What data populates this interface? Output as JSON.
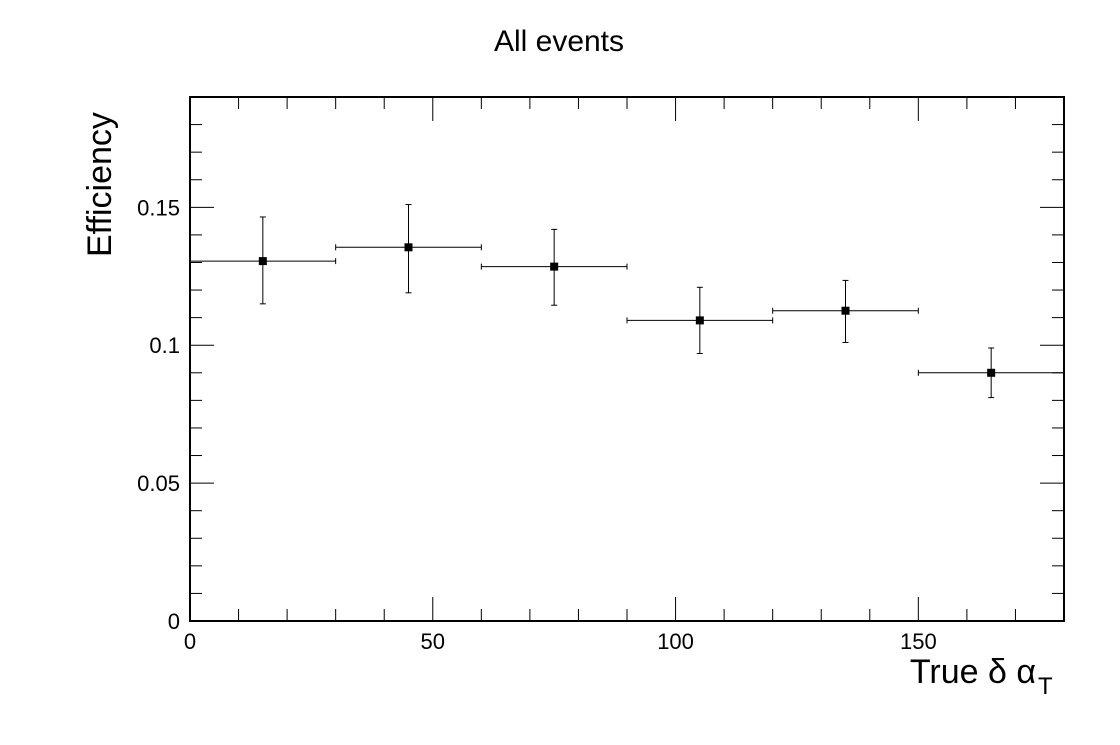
{
  "chart_data": {
    "type": "scatter",
    "title": "All events",
    "xlabel": "True δ α",
    "xlabel_subscript": "T",
    "ylabel": "Efficiency",
    "xlim": [
      0,
      180
    ],
    "ylim": [
      0,
      0.19
    ],
    "x_ticks": [
      0,
      50,
      100,
      150
    ],
    "x_tick_labels": [
      "0",
      "50",
      "100",
      "150"
    ],
    "y_ticks": [
      0,
      0.05,
      0.1,
      0.15
    ],
    "y_tick_labels": [
      "0",
      "0.05",
      "0.1",
      "0.15"
    ],
    "grid": false,
    "legend": "none",
    "series": [
      {
        "points": [
          {
            "x": 15,
            "xlow": 0,
            "xhigh": 30,
            "y": 0.1305,
            "ylow": 0.115,
            "yhigh": 0.1465
          },
          {
            "x": 45,
            "xlow": 30,
            "xhigh": 60,
            "y": 0.1355,
            "ylow": 0.119,
            "yhigh": 0.151
          },
          {
            "x": 75,
            "xlow": 60,
            "xhigh": 90,
            "y": 0.1285,
            "ylow": 0.1145,
            "yhigh": 0.142
          },
          {
            "x": 105,
            "xlow": 90,
            "xhigh": 120,
            "y": 0.109,
            "ylow": 0.097,
            "yhigh": 0.121
          },
          {
            "x": 135,
            "xlow": 120,
            "xhigh": 150,
            "y": 0.1125,
            "ylow": 0.101,
            "yhigh": 0.1235
          },
          {
            "x": 165,
            "xlow": 150,
            "xhigh": 180,
            "y": 0.09,
            "ylow": 0.081,
            "yhigh": 0.099
          }
        ]
      }
    ]
  }
}
